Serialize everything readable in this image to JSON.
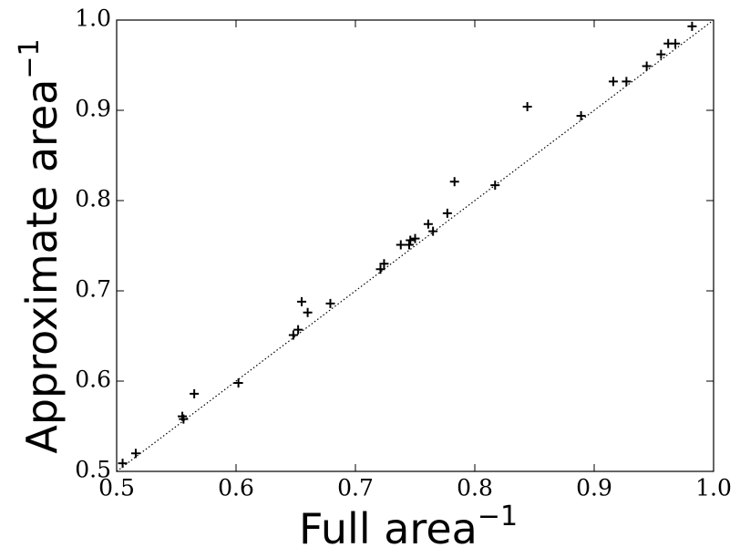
{
  "chart_data": {
    "type": "scatter",
    "xlabel": "Full area",
    "xlabel_exponent": "−1",
    "ylabel": "Approximate area",
    "ylabel_exponent": "−1",
    "marker": "+",
    "color": "#000000",
    "identity_line": true,
    "xlim": [
      0.5,
      1
    ],
    "ylim": [
      0.5,
      1
    ],
    "xticks": [
      0.5,
      0.6,
      0.7,
      0.8,
      0.9,
      {
        "value": 1,
        "label": "1.0"
      }
    ],
    "yticks": [
      0.5,
      0.6,
      0.7,
      0.8,
      0.9,
      {
        "value": 1,
        "label": "1.0"
      }
    ],
    "x": [
      0.505,
      0.516,
      0.555,
      0.556,
      0.565,
      0.602,
      0.648,
      0.652,
      0.655,
      0.66,
      0.679,
      0.721,
      0.724,
      0.738,
      0.745,
      0.746,
      0.75,
      0.761,
      0.765,
      0.777,
      0.783,
      0.817,
      0.844,
      0.889,
      0.916,
      0.927,
      0.944,
      0.956,
      0.962,
      0.968,
      0.982
    ],
    "y": [
      0.509,
      0.52,
      0.561,
      0.558,
      0.586,
      0.598,
      0.651,
      0.657,
      0.688,
      0.676,
      0.686,
      0.724,
      0.73,
      0.751,
      0.751,
      0.756,
      0.758,
      0.774,
      0.766,
      0.786,
      0.821,
      0.817,
      0.904,
      0.894,
      0.932,
      0.932,
      0.949,
      0.962,
      0.974,
      0.974,
      0.993
    ]
  }
}
